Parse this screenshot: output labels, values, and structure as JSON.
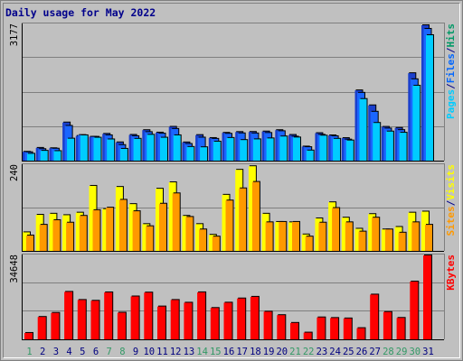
{
  "chart_data": [
    {
      "type": "bar",
      "title": "Daily usage for May 2022",
      "ymax_label": "3177",
      "legend": [
        {
          "text": "Pages",
          "color": "#00ccff"
        },
        {
          "text": "/",
          "color": "#00008b"
        },
        {
          "text": "Files",
          "color": "#0066ff"
        },
        {
          "text": "/",
          "color": "#00008b"
        },
        {
          "text": "Hits",
          "color": "#009966"
        }
      ],
      "categories": [
        "1",
        "2",
        "3",
        "4",
        "5",
        "6",
        "7",
        "8",
        "9",
        "10",
        "11",
        "12",
        "13",
        "14",
        "15",
        "16",
        "17",
        "18",
        "19",
        "20",
        "21",
        "22",
        "23",
        "24",
        "25",
        "26",
        "27",
        "28",
        "29",
        "30",
        "31"
      ],
      "ylim": [
        0,
        3177
      ],
      "series": [
        {
          "name": "Hits",
          "color": "#1a3fcc",
          "values": [
            206,
            297,
            289,
            889,
            576,
            556,
            624,
            426,
            600,
            711,
            653,
            788,
            425,
            596,
            527,
            648,
            667,
            669,
            679,
            711,
            599,
            328,
            641,
            589,
            525,
            1638,
            1289,
            787,
            763,
            2038,
            3156
          ]
        },
        {
          "name": "Files",
          "color": "#1a66ff",
          "values": [
            196,
            268,
            279,
            810,
            597,
            555,
            590,
            363,
            570,
            665,
            630,
            739,
            389,
            537,
            508,
            626,
            636,
            634,
            645,
            686,
            560,
            314,
            603,
            569,
            491,
            1581,
            1140,
            749,
            712,
            1897,
            3072
          ]
        },
        {
          "name": "Pages",
          "color": "#00ccff",
          "values": [
            160,
            229,
            222,
            513,
            590,
            535,
            495,
            275,
            509,
            603,
            535,
            590,
            319,
            312,
            443,
            529,
            480,
            497,
            519,
            564,
            540,
            236,
            583,
            509,
            470,
            1437,
            879,
            679,
            651,
            1747,
            2924
          ]
        }
      ]
    },
    {
      "type": "bar",
      "ymax_label": "240",
      "legend": [
        {
          "text": "Sites",
          "color": "#ff9900"
        },
        {
          "text": "/",
          "color": "#00008b"
        },
        {
          "text": "Visits",
          "color": "#ffff00"
        }
      ],
      "categories": [
        "1",
        "2",
        "3",
        "4",
        "5",
        "6",
        "7",
        "8",
        "9",
        "10",
        "11",
        "12",
        "13",
        "14",
        "15",
        "16",
        "17",
        "18",
        "19",
        "20",
        "21",
        "22",
        "23",
        "24",
        "25",
        "26",
        "27",
        "28",
        "29",
        "30",
        "31"
      ],
      "ylim": [
        0,
        240
      ],
      "series": [
        {
          "name": "Visits",
          "color": "#ffff00",
          "values": [
            52,
            101,
            104,
            100,
            107,
            182,
            117,
            179,
            131,
            75,
            174,
            192,
            98,
            75,
            45,
            157,
            227,
            237,
            104,
            81,
            80,
            46,
            91,
            136,
            93,
            62,
            103,
            60,
            67,
            107,
            110
          ]
        },
        {
          "name": "Sites",
          "color": "#ff9900",
          "values": [
            43,
            73,
            86,
            79,
            98,
            114,
            121,
            143,
            111,
            69,
            132,
            161,
            95,
            60,
            40,
            141,
            175,
            193,
            80,
            81,
            81,
            40,
            79,
            120,
            80,
            54,
            93,
            60,
            51,
            80,
            73
          ]
        }
      ]
    },
    {
      "type": "bar",
      "ymax_label": "34648",
      "legend": [
        {
          "text": "KBytes",
          "color": "#ff0000"
        }
      ],
      "categories": [
        "1",
        "2",
        "3",
        "4",
        "5",
        "6",
        "7",
        "8",
        "9",
        "10",
        "11",
        "12",
        "13",
        "14",
        "15",
        "16",
        "17",
        "18",
        "19",
        "20",
        "21",
        "22",
        "23",
        "24",
        "25",
        "26",
        "27",
        "28",
        "29",
        "30",
        "31"
      ],
      "ylim": [
        0,
        34648
      ],
      "series": [
        {
          "name": "KBytes",
          "color": "#ff0000",
          "values": [
            2628,
            9240,
            10912,
            19592,
            16244,
            15916,
            19380,
            11000,
            17700,
            19300,
            13552,
            16244,
            15120,
            19404,
            12936,
            15136,
            16868,
            17548,
            11408,
            9990,
            6776,
            2772,
            9048,
            8808,
            8624,
            4620,
            18468,
            11284,
            8844,
            23848,
            34648
          ]
        }
      ]
    }
  ],
  "x_labels": [
    {
      "text": "1",
      "color": "#339966"
    },
    {
      "text": "2",
      "color": "#000080"
    },
    {
      "text": "3",
      "color": "#000080"
    },
    {
      "text": "4",
      "color": "#000080"
    },
    {
      "text": "5",
      "color": "#000080"
    },
    {
      "text": "6",
      "color": "#000080"
    },
    {
      "text": "7",
      "color": "#339966"
    },
    {
      "text": "8",
      "color": "#339966"
    },
    {
      "text": "9",
      "color": "#000080"
    },
    {
      "text": "10",
      "color": "#000080"
    },
    {
      "text": "11",
      "color": "#000080"
    },
    {
      "text": "12",
      "color": "#000080"
    },
    {
      "text": "13",
      "color": "#000080"
    },
    {
      "text": "14",
      "color": "#339966"
    },
    {
      "text": "15",
      "color": "#339966"
    },
    {
      "text": "16",
      "color": "#000080"
    },
    {
      "text": "17",
      "color": "#000080"
    },
    {
      "text": "18",
      "color": "#000080"
    },
    {
      "text": "19",
      "color": "#000080"
    },
    {
      "text": "20",
      "color": "#000080"
    },
    {
      "text": "21",
      "color": "#339966"
    },
    {
      "text": "22",
      "color": "#339966"
    },
    {
      "text": "23",
      "color": "#000080"
    },
    {
      "text": "24",
      "color": "#000080"
    },
    {
      "text": "25",
      "color": "#000080"
    },
    {
      "text": "26",
      "color": "#000080"
    },
    {
      "text": "27",
      "color": "#000080"
    },
    {
      "text": "28",
      "color": "#339966"
    },
    {
      "text": "29",
      "color": "#339966"
    },
    {
      "text": "30",
      "color": "#339966"
    },
    {
      "text": "31",
      "color": "#000080"
    }
  ],
  "colors": {
    "background": "#c0c0c0",
    "plot_background": "#c0c0c0",
    "gridline": "#7f7f7f",
    "bar_shadow": "#000000",
    "title": "#00008b",
    "axis_label": "#000000"
  }
}
